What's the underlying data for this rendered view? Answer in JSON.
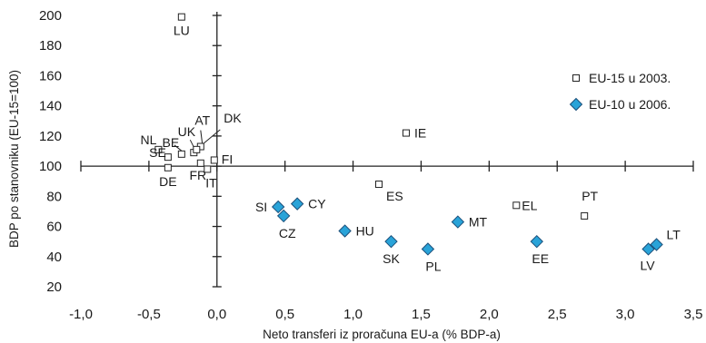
{
  "chart_data": {
    "type": "scatter",
    "title": "",
    "xlabel": "Neto transferi iz proračuna EU-a (% BDP-a)",
    "ylabel": "BDP po stanovniku (EU-15=100)",
    "xlim": [
      -1.0,
      3.5
    ],
    "ylim": [
      20,
      200
    ],
    "x_ticks": [
      "-1,0",
      "-0,5",
      "0,0",
      "0,5",
      "1,0",
      "1,5",
      "2,0",
      "2,5",
      "3,0",
      "3,5"
    ],
    "y_ticks": [
      "20",
      "40",
      "60",
      "80",
      "100",
      "120",
      "140",
      "160",
      "180",
      "200"
    ],
    "legend_position": "right",
    "series": [
      {
        "name": "EU-15 u 2003.",
        "marker": "square",
        "color": "#ffffff",
        "stroke": "#222222",
        "points": [
          {
            "label": "LU",
            "x": -0.26,
            "y": 199
          },
          {
            "label": "NL",
            "x": -0.43,
            "y": 111
          },
          {
            "label": "BE",
            "x": -0.26,
            "y": 108
          },
          {
            "label": "UK",
            "x": -0.17,
            "y": 109
          },
          {
            "label": "AT",
            "x": -0.12,
            "y": 113
          },
          {
            "label": "DK",
            "x": -0.15,
            "y": 111
          },
          {
            "label": "SE",
            "x": -0.36,
            "y": 106
          },
          {
            "label": "DE",
            "x": -0.36,
            "y": 99
          },
          {
            "label": "FR",
            "x": -0.12,
            "y": 102
          },
          {
            "label": "IT",
            "x": -0.07,
            "y": 98
          },
          {
            "label": "FI",
            "x": -0.02,
            "y": 104
          },
          {
            "label": "IE",
            "x": 1.39,
            "y": 122
          },
          {
            "label": "ES",
            "x": 1.19,
            "y": 88
          },
          {
            "label": "EL",
            "x": 2.2,
            "y": 74
          },
          {
            "label": "PT",
            "x": 2.7,
            "y": 67
          }
        ]
      },
      {
        "name": "EU-10 u 2006.",
        "marker": "diamond",
        "color": "#29a3d8",
        "stroke": "#1b4f7a",
        "points": [
          {
            "label": "SI",
            "x": 0.45,
            "y": 73
          },
          {
            "label": "CY",
            "x": 0.59,
            "y": 75
          },
          {
            "label": "CZ",
            "x": 0.49,
            "y": 67
          },
          {
            "label": "HU",
            "x": 0.94,
            "y": 57
          },
          {
            "label": "SK",
            "x": 1.28,
            "y": 50
          },
          {
            "label": "PL",
            "x": 1.55,
            "y": 45
          },
          {
            "label": "MT",
            "x": 1.77,
            "y": 63
          },
          {
            "label": "EE",
            "x": 2.35,
            "y": 50
          },
          {
            "label": "LV",
            "x": 3.17,
            "y": 45
          },
          {
            "label": "LT",
            "x": 3.23,
            "y": 48
          }
        ]
      }
    ]
  }
}
